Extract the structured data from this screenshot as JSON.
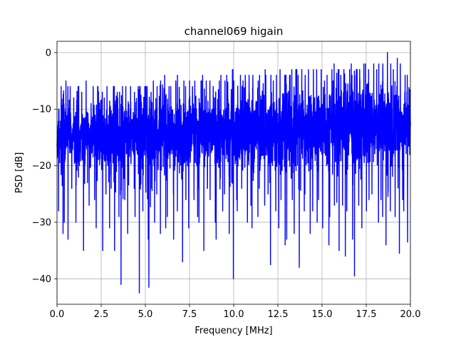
{
  "chart_data": {
    "type": "line",
    "title": "channel069 higain",
    "xlabel": "Frequency [MHz]",
    "ylabel": "PSD [dB]",
    "xlim": [
      0,
      20
    ],
    "ylim": [
      -44.5,
      2
    ],
    "xticks": [
      0,
      2.5,
      5,
      7.5,
      10,
      12.5,
      15,
      17.5,
      20
    ],
    "xtick_labels": [
      "0.0",
      "2.5",
      "5.0",
      "7.5",
      "10.0",
      "12.5",
      "15.0",
      "17.5",
      "20.0"
    ],
    "yticks": [
      0,
      -10,
      -20,
      -30,
      -40
    ],
    "ytick_labels": [
      "0",
      "−10",
      "−20",
      "−30",
      "−40"
    ],
    "grid": true,
    "series": [
      {
        "color": "#0000ff",
        "x": [
          0,
          0.2,
          0.4,
          0.6,
          0.8,
          1.0,
          1.2,
          1.4,
          1.6,
          1.8,
          2.0,
          2.2,
          2.4,
          2.6,
          2.8,
          3.0,
          3.2,
          3.4,
          3.6,
          3.8,
          4.0,
          4.2,
          4.4,
          4.6,
          4.8,
          5.0,
          5.2,
          5.4,
          5.6,
          5.8,
          6.0,
          6.2,
          6.4,
          6.6,
          6.8,
          7.0,
          7.2,
          7.4,
          7.6,
          7.8,
          8.0,
          8.2,
          8.4,
          8.6,
          8.8,
          9.0,
          9.2,
          9.4,
          9.6,
          9.8,
          10.0,
          10.2,
          10.4,
          10.6,
          10.8,
          11.0,
          11.2,
          11.4,
          11.6,
          11.8,
          12.0,
          12.2,
          12.4,
          12.6,
          12.8,
          13.0,
          13.2,
          13.4,
          13.6,
          13.8,
          14.0,
          14.2,
          14.4,
          14.6,
          14.8,
          15.0,
          15.2,
          15.4,
          15.6,
          15.8,
          16.0,
          16.2,
          16.4,
          16.6,
          16.8,
          17.0,
          17.2,
          17.4,
          17.6,
          17.8,
          18.0,
          18.2,
          18.4,
          18.6,
          18.8,
          19.0,
          19.2,
          19.4,
          19.6,
          19.8,
          20.0
        ],
        "min": [
          -28,
          -32,
          -30,
          -33,
          -24,
          -30,
          -22,
          -35,
          -23,
          -27,
          -26,
          -31,
          -35,
          -25,
          -31,
          -24,
          -35,
          -29,
          -41,
          -26,
          -32,
          -24,
          -29,
          -42.5,
          -28,
          -33,
          -41.5,
          -30,
          -25,
          -32,
          -31,
          -29,
          -25,
          -33,
          -28,
          -37,
          -26,
          -31,
          -26,
          -29,
          -30,
          -35,
          -24,
          -26,
          -30,
          -33,
          -28,
          -25,
          -32,
          -40,
          -26,
          -28,
          -24,
          -30,
          -27,
          -31,
          -29,
          -24,
          -27,
          -25,
          -37.5,
          -28,
          -31,
          -26,
          -34,
          -33,
          -26,
          -32,
          -38,
          -28,
          -25,
          -32,
          -28,
          -30,
          -26,
          -31,
          -34,
          -29,
          -27,
          -35,
          -27,
          -36,
          -28,
          -33,
          -39.5,
          -27,
          -31,
          -28,
          -26,
          -25,
          -30,
          -26,
          -29,
          -34,
          -28,
          -29,
          -35.5,
          -26,
          -28,
          -33.5,
          -27
        ],
        "max": [
          -10,
          -6,
          -5,
          -6,
          -8,
          -6,
          -6,
          -7,
          -5,
          -9,
          -6,
          -6,
          -7,
          -8,
          -6,
          -6,
          -6,
          -7,
          -6,
          -6,
          -6,
          -7,
          -6,
          -6,
          -6,
          -6,
          -7,
          -5,
          -6,
          -5,
          -4,
          -6,
          -6,
          -5,
          -4,
          -5,
          -6,
          -5,
          -6,
          -5,
          -5,
          -4,
          -5,
          -5,
          -6,
          -5,
          -4,
          -5,
          -4,
          -3,
          -5,
          -4,
          -5,
          -4,
          -4,
          -4,
          -5,
          -4,
          -3,
          -4,
          -4,
          -5,
          -4,
          -3,
          -4,
          -4,
          -3,
          -3,
          -4,
          -3,
          -4,
          -3,
          -3,
          -3,
          -3,
          -5,
          -4,
          -3,
          -2,
          -3,
          -4,
          -3,
          -3,
          -2,
          -3,
          -3,
          -2,
          -2,
          -3,
          -2,
          -3,
          -2,
          -2,
          0,
          -2,
          -3,
          -1,
          -2,
          -4,
          -4,
          -5
        ],
        "median": [
          -15,
          -14,
          -15,
          -14,
          -15,
          -14,
          -15,
          -15,
          -14,
          -15,
          -15,
          -14,
          -15,
          -15,
          -14,
          -15,
          -14,
          -15,
          -15,
          -14,
          -15,
          -14,
          -15,
          -14,
          -15,
          -14,
          -15,
          -14,
          -15,
          -14,
          -14,
          -15,
          -14,
          -15,
          -14,
          -14,
          -15,
          -14,
          -14,
          -15,
          -14,
          -14,
          -15,
          -14,
          -14,
          -14,
          -15,
          -14,
          -14,
          -14,
          -14,
          -14,
          -14,
          -14,
          -14,
          -14,
          -13,
          -14,
          -14,
          -14,
          -14,
          -13,
          -14,
          -14,
          -13,
          -14,
          -14,
          -13,
          -14,
          -13,
          -14,
          -13,
          -13,
          -14,
          -13,
          -13,
          -14,
          -13,
          -13,
          -13,
          -13,
          -13,
          -13,
          -13,
          -13,
          -13,
          -13,
          -13,
          -13,
          -13,
          -13,
          -13,
          -12,
          -13,
          -13,
          -13,
          -12,
          -13,
          -13,
          -13,
          -13
        ]
      }
    ]
  }
}
